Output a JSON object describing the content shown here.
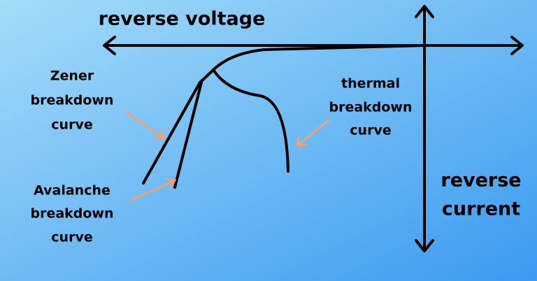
{
  "labels": {
    "reverse_voltage": "reverse voltage",
    "reverse_current": [
      "reverse",
      "current"
    ],
    "zener": [
      "Zener",
      "breakdown",
      "curve"
    ],
    "avalanche": [
      "Avalanche",
      "breakdown",
      "curve"
    ],
    "thermal": [
      "thermal",
      "breakdown",
      "curve"
    ]
  }
}
